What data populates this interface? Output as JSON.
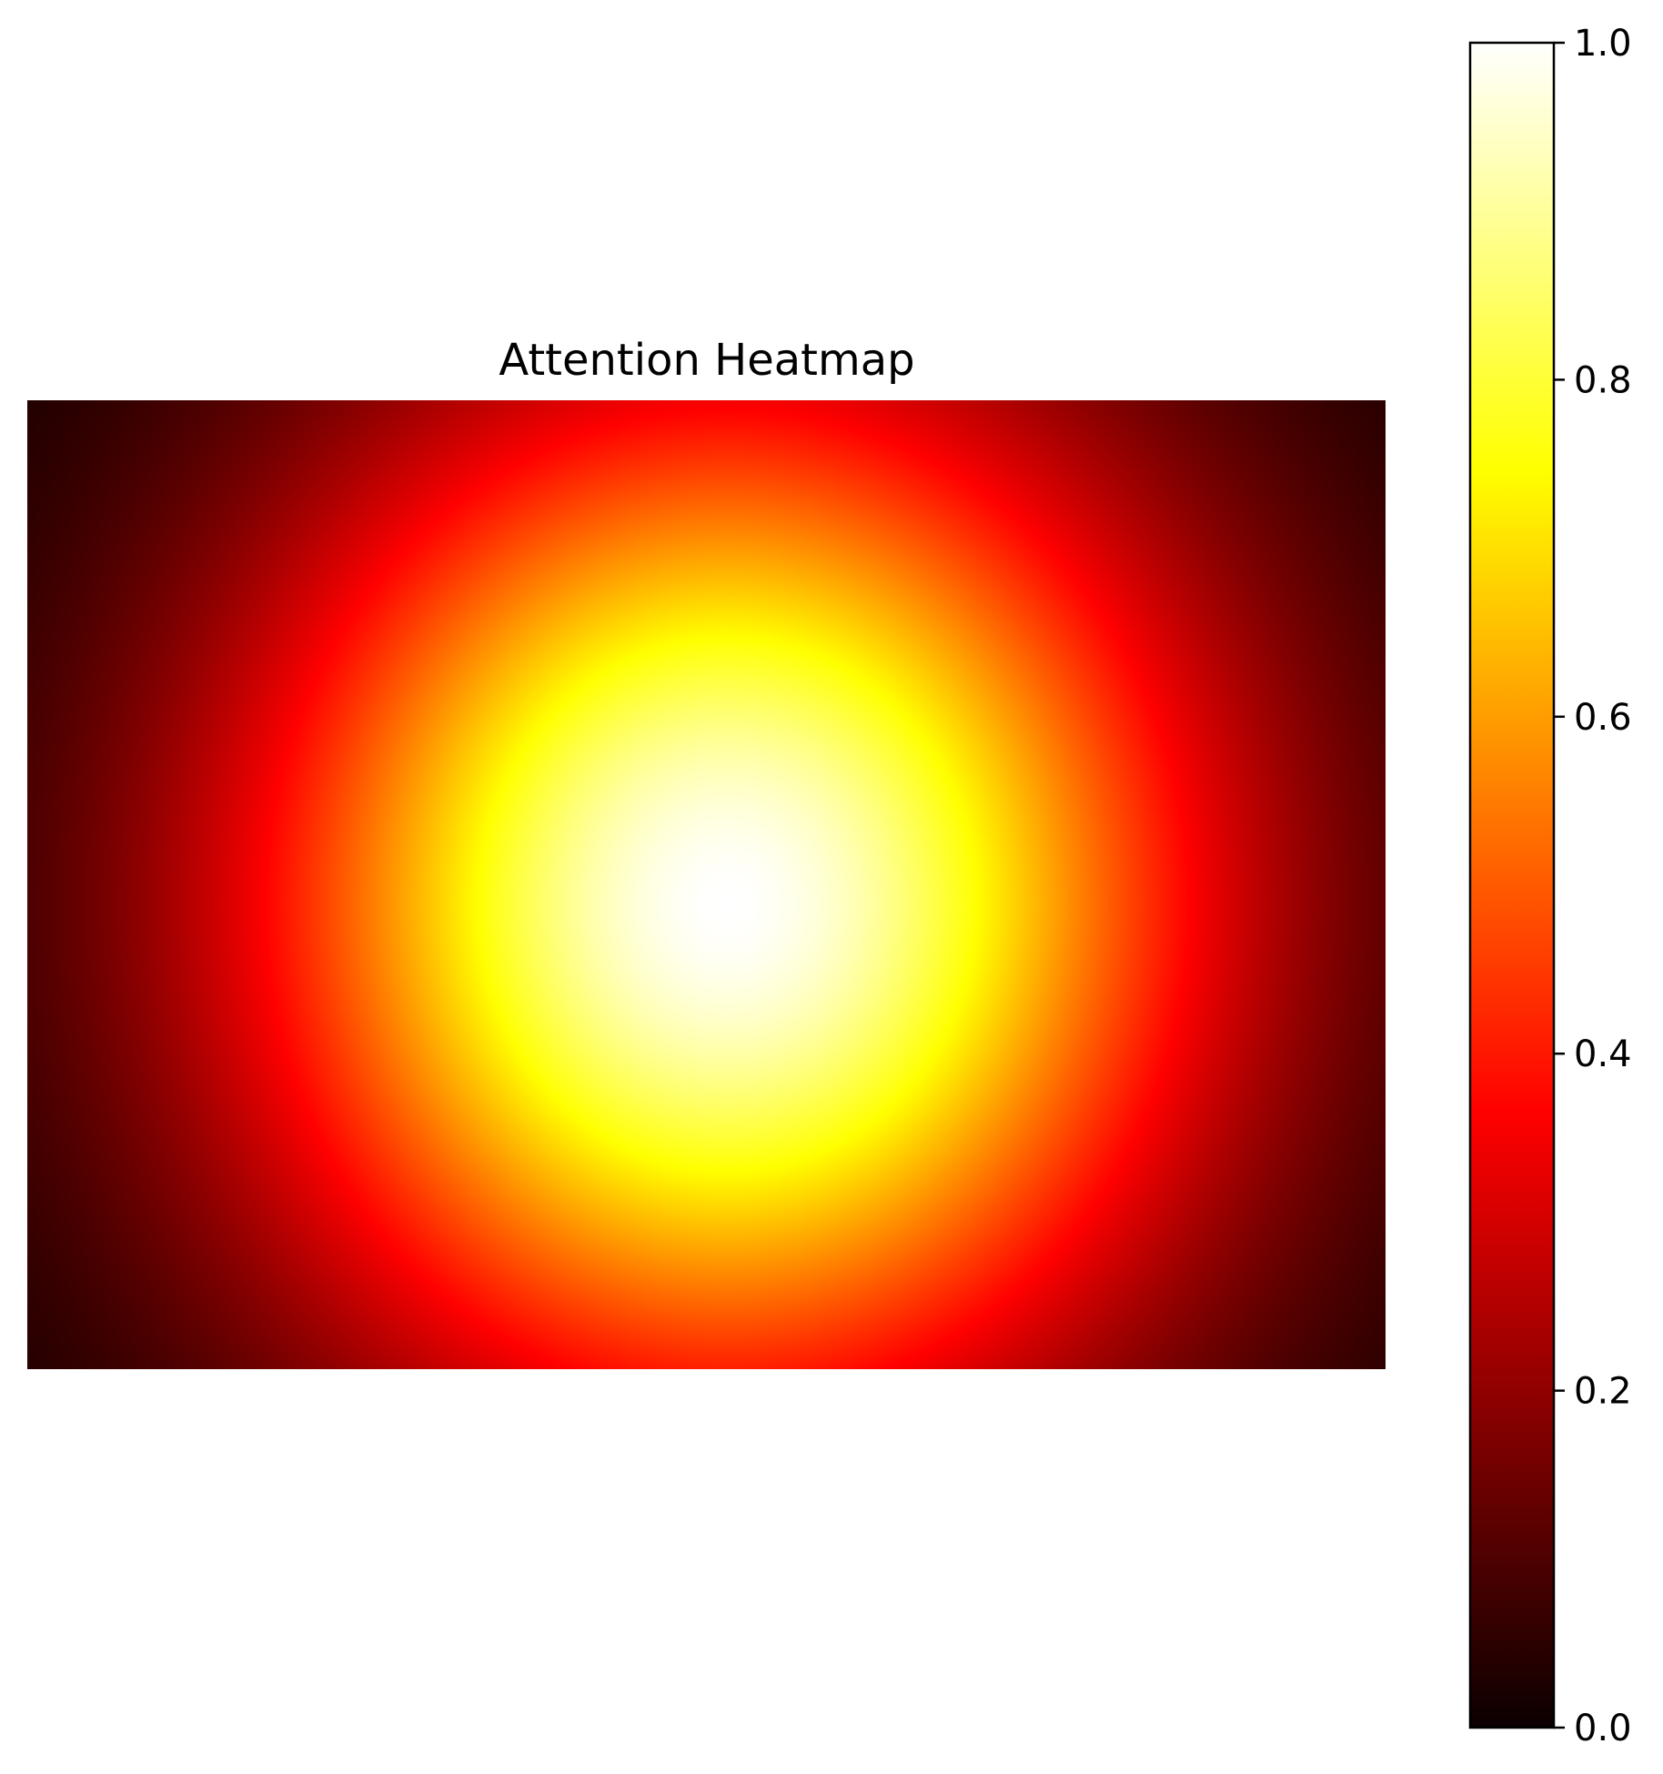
{
  "chart_data": {
    "type": "heatmap",
    "title": "Attention Heatmap",
    "xlabel": "",
    "ylabel": "",
    "axes_visible": false,
    "grid": false,
    "pattern": {
      "kind": "gaussian",
      "center_x_fraction": 0.515,
      "center_y_fraction": 0.52,
      "sigma_x_fraction": 0.24,
      "sigma_y_fraction": 0.36,
      "peak_value": 1.0,
      "edge_value": 0.0
    },
    "colormap": {
      "name": "hot",
      "stops": [
        {
          "value": 0.0,
          "color": "#0b0000"
        },
        {
          "value": 0.365,
          "color": "#ff0000"
        },
        {
          "value": 0.746,
          "color": "#ffff00"
        },
        {
          "value": 1.0,
          "color": "#ffffff"
        }
      ]
    },
    "colorbar": {
      "min": 0.0,
      "max": 1.0,
      "ticks": [
        0.0,
        0.2,
        0.4,
        0.6,
        0.8,
        1.0
      ],
      "tick_labels": [
        "0.0",
        "0.2",
        "0.4",
        "0.6",
        "0.8",
        "1.0"
      ],
      "placement": "right"
    }
  }
}
